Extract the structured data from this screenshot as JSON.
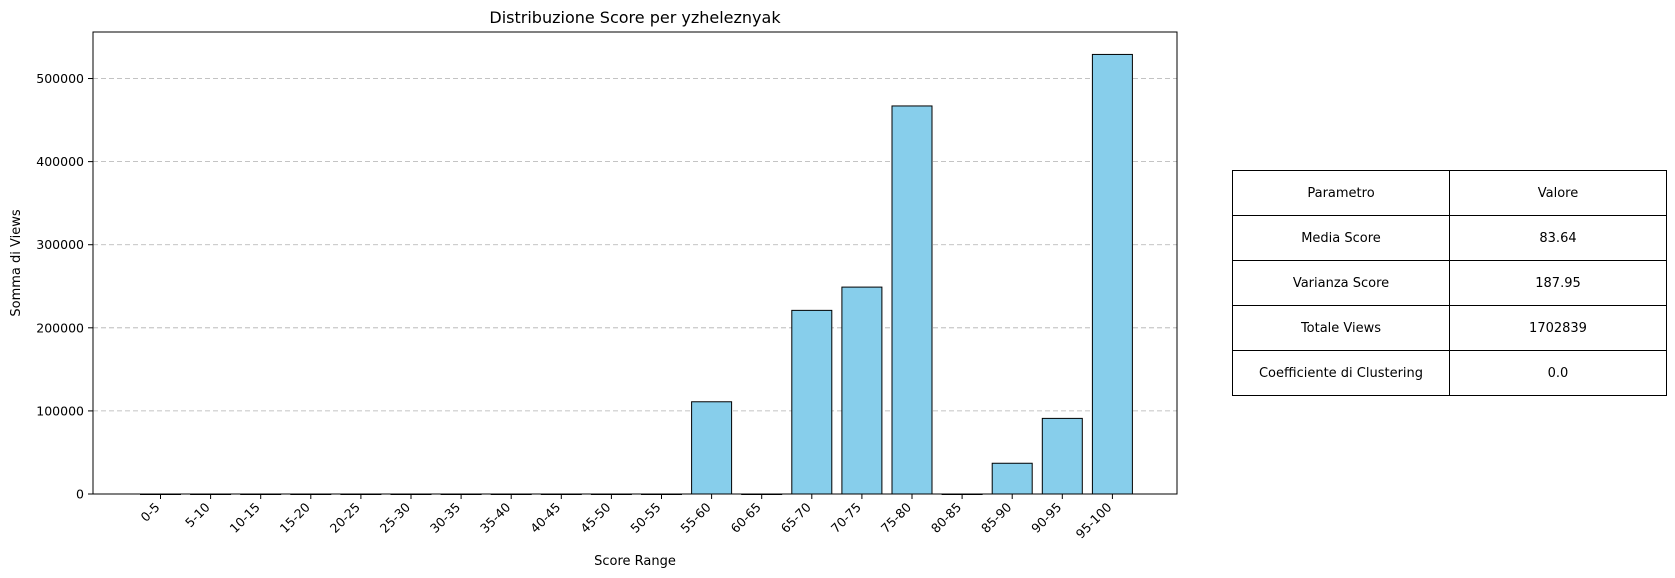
{
  "chart_data": {
    "type": "bar",
    "title": "Distribuzione Score per yzheleznyak",
    "xlabel": "Score Range",
    "ylabel": "Somma di Views",
    "categories": [
      "0-5",
      "5-10",
      "10-15",
      "15-20",
      "20-25",
      "25-30",
      "30-35",
      "35-40",
      "40-45",
      "45-50",
      "50-55",
      "55-60",
      "60-65",
      "65-70",
      "70-75",
      "75-80",
      "80-85",
      "85-90",
      "90-95",
      "95-100"
    ],
    "values": [
      0,
      0,
      0,
      0,
      0,
      0,
      0,
      0,
      0,
      0,
      0,
      111000,
      0,
      221000,
      249000,
      467000,
      0,
      37000,
      91000,
      529000
    ],
    "ylim": [
      0,
      556000
    ],
    "yticks": [
      0,
      100000,
      200000,
      300000,
      400000,
      500000
    ],
    "grid": "y-dashed",
    "bar_color": "#87ceeb",
    "edge_color": "#000000"
  },
  "table": {
    "header": [
      "Parametro",
      "Valore"
    ],
    "rows": [
      [
        "Media Score",
        "83.64"
      ],
      [
        "Varianza Score",
        "187.95"
      ],
      [
        "Totale Views",
        "1702839"
      ],
      [
        "Coefficiente di Clustering",
        "0.0"
      ]
    ]
  }
}
